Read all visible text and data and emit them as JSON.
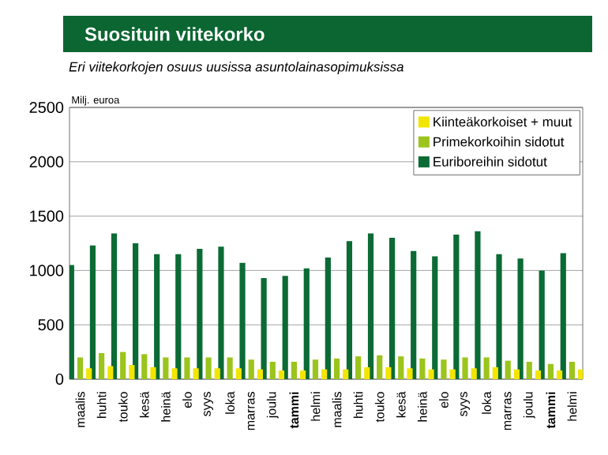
{
  "chart_data": {
    "type": "bar",
    "title": "Suosituin viitekorko",
    "subtitle": "Eri viitekorkojen osuus uusissa asuntolainasopimuksissa",
    "ylabel": "Milj. euroa",
    "categories": [
      "maalis",
      "huhti",
      "touko",
      "kesä",
      "heinä",
      "elo",
      "syys",
      "loka",
      "marras",
      "joulu",
      "**tammi**",
      "helmi",
      "maalis",
      "huhti",
      "touko",
      "kesä",
      "heinä",
      "elo",
      "syys",
      "loka",
      "marras",
      "joulu",
      "**tammi**",
      "helmi"
    ],
    "series": [
      {
        "name": "Euriboreihin sidotut",
        "color": "#0b6b35",
        "values": [
          1050,
          1230,
          1340,
          1250,
          1150,
          1150,
          1200,
          1220,
          1070,
          930,
          950,
          1020,
          1120,
          1270,
          1340,
          1300,
          1180,
          1130,
          1330,
          1360,
          1150,
          1110,
          1000,
          1160
        ]
      },
      {
        "name": "Primekorkoihin sidotut",
        "color": "#9bc41c",
        "values": [
          200,
          240,
          250,
          230,
          200,
          200,
          200,
          200,
          180,
          160,
          160,
          180,
          190,
          210,
          220,
          210,
          190,
          180,
          200,
          200,
          170,
          160,
          140,
          160
        ]
      },
      {
        "name": "Kiinteäkorkoiset + muut",
        "color": "#f2e600",
        "values": [
          100,
          120,
          130,
          110,
          100,
          100,
          100,
          100,
          90,
          80,
          80,
          90,
          90,
          110,
          110,
          100,
          90,
          90,
          100,
          110,
          90,
          80,
          80,
          90
        ]
      }
    ],
    "ylim": [
      0,
      2500
    ],
    "yticks": [
      0,
      500,
      1000,
      1500,
      2000,
      2500
    ],
    "grid": "y",
    "legend": "top right"
  }
}
